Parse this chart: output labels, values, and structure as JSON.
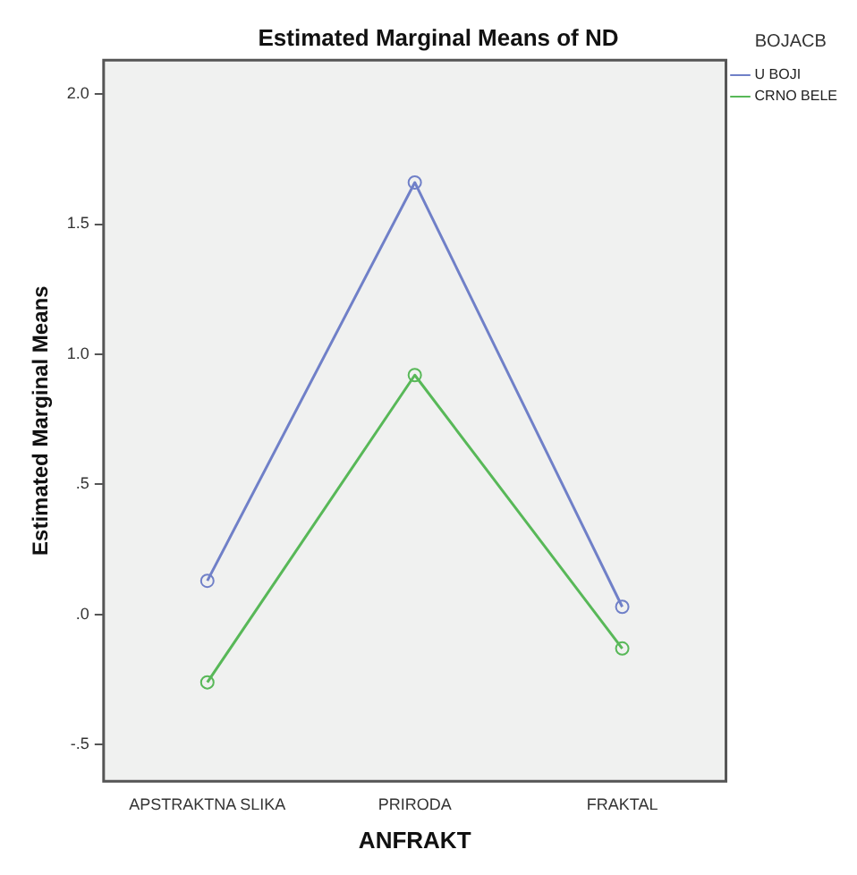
{
  "chart_data": {
    "type": "line",
    "title": "Estimated Marginal Means of ND",
    "xlabel": "ANFRAKT",
    "ylabel": "Estimated Marginal Means",
    "legend_title": "BOJACB",
    "categories": [
      "APSTRAKTNA SLIKA",
      "PRIRODA",
      "FRAKTAL"
    ],
    "series": [
      {
        "name": "U BOJI",
        "color": "#7080c8",
        "values": [
          0.13,
          1.66,
          0.03
        ]
      },
      {
        "name": "CRNO BELE",
        "color": "#58b858",
        "values": [
          -0.26,
          0.92,
          -0.13
        ]
      }
    ],
    "ylim": [
      -0.64,
      2.13
    ],
    "yticks": [
      {
        "value": -0.5,
        "label": "-.5"
      },
      {
        "value": 0,
        "label": ".0"
      },
      {
        "value": 0.5,
        "label": ".5"
      },
      {
        "value": 1,
        "label": "1.0"
      },
      {
        "value": 1.5,
        "label": "1.5"
      },
      {
        "value": 2,
        "label": "2.0"
      }
    ],
    "grid": false,
    "legend": "top right",
    "marker": "circle",
    "line_style": "solid"
  }
}
